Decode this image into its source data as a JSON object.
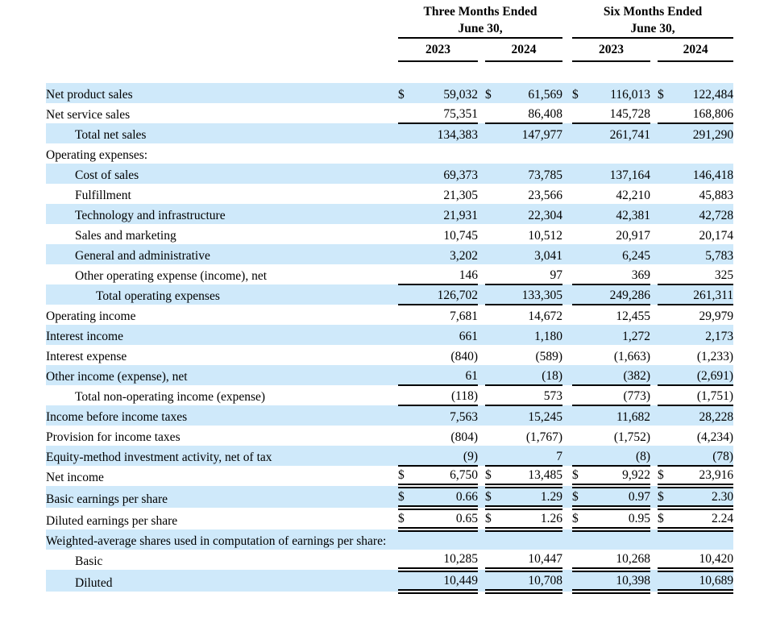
{
  "colors": {
    "row_highlight": "#cfe9fa",
    "text": "#000000",
    "rule": "#000000",
    "background": "#ffffff"
  },
  "table": {
    "currency_symbol": "$",
    "periods": [
      {
        "line1": "Three Months Ended",
        "line2": "June 30,",
        "years": [
          "2023",
          "2024"
        ]
      },
      {
        "line1": "Six Months Ended",
        "line2": "June 30,",
        "years": [
          "2023",
          "2024"
        ]
      }
    ],
    "rows": [
      {
        "label": "Net product sales",
        "indent": 0,
        "hl": true,
        "dollar": true,
        "border": "none",
        "values": [
          "59,032",
          "61,569",
          "116,013",
          "122,484"
        ]
      },
      {
        "label": "Net service sales",
        "indent": 0,
        "hl": false,
        "dollar": false,
        "border": "single",
        "values": [
          "75,351",
          "86,408",
          "145,728",
          "168,806"
        ]
      },
      {
        "label": "Total net sales",
        "indent": 1,
        "hl": true,
        "dollar": false,
        "border": "none",
        "values": [
          "134,383",
          "147,977",
          "261,741",
          "291,290"
        ]
      },
      {
        "label": "Operating expenses:",
        "indent": 0,
        "hl": false,
        "dollar": false,
        "border": "none",
        "values": null
      },
      {
        "label": "Cost of sales",
        "indent": 1,
        "hl": true,
        "dollar": false,
        "border": "none",
        "values": [
          "69,373",
          "73,785",
          "137,164",
          "146,418"
        ]
      },
      {
        "label": "Fulfillment",
        "indent": 1,
        "hl": false,
        "dollar": false,
        "border": "none",
        "values": [
          "21,305",
          "23,566",
          "42,210",
          "45,883"
        ]
      },
      {
        "label": "Technology and infrastructure",
        "indent": 1,
        "hl": true,
        "dollar": false,
        "border": "none",
        "values": [
          "21,931",
          "22,304",
          "42,381",
          "42,728"
        ]
      },
      {
        "label": "Sales and marketing",
        "indent": 1,
        "hl": false,
        "dollar": false,
        "border": "none",
        "values": [
          "10,745",
          "10,512",
          "20,917",
          "20,174"
        ]
      },
      {
        "label": "General and administrative",
        "indent": 1,
        "hl": true,
        "dollar": false,
        "border": "none",
        "values": [
          "3,202",
          "3,041",
          "6,245",
          "5,783"
        ]
      },
      {
        "label": "Other operating expense (income), net",
        "indent": 1,
        "hl": false,
        "dollar": false,
        "border": "single",
        "values": [
          "146",
          "97",
          "369",
          "325"
        ]
      },
      {
        "label": "Total operating expenses",
        "indent": 2,
        "hl": true,
        "dollar": false,
        "border": "single",
        "values": [
          "126,702",
          "133,305",
          "249,286",
          "261,311"
        ]
      },
      {
        "label": "Operating income",
        "indent": 0,
        "hl": false,
        "dollar": false,
        "border": "none",
        "values": [
          "7,681",
          "14,672",
          "12,455",
          "29,979"
        ]
      },
      {
        "label": "Interest income",
        "indent": 0,
        "hl": true,
        "dollar": false,
        "border": "none",
        "values": [
          "661",
          "1,180",
          "1,272",
          "2,173"
        ]
      },
      {
        "label": "Interest expense",
        "indent": 0,
        "hl": false,
        "dollar": false,
        "border": "none",
        "values": [
          "(840)",
          "(589)",
          "(1,663)",
          "(1,233)"
        ]
      },
      {
        "label": "Other income (expense), net",
        "indent": 0,
        "hl": true,
        "dollar": false,
        "border": "single",
        "values": [
          "61",
          "(18)",
          "(382)",
          "(2,691)"
        ]
      },
      {
        "label": "Total non-operating income (expense)",
        "indent": 1,
        "hl": false,
        "dollar": false,
        "border": "single",
        "values": [
          "(118)",
          "573",
          "(773)",
          "(1,751)"
        ]
      },
      {
        "label": "Income before income taxes",
        "indent": 0,
        "hl": true,
        "dollar": false,
        "border": "none",
        "values": [
          "7,563",
          "15,245",
          "11,682",
          "28,228"
        ]
      },
      {
        "label": "Provision for income taxes",
        "indent": 0,
        "hl": false,
        "dollar": false,
        "border": "none",
        "values": [
          "(804)",
          "(1,767)",
          "(1,752)",
          "(4,234)"
        ]
      },
      {
        "label": "Equity-method investment activity, net of tax",
        "indent": 0,
        "hl": true,
        "dollar": false,
        "border": "single",
        "values": [
          "(9)",
          "7",
          "(8)",
          "(78)"
        ]
      },
      {
        "label": "Net income",
        "indent": 0,
        "hl": false,
        "dollar": true,
        "border": "double",
        "values": [
          "6,750",
          "13,485",
          "9,922",
          "23,916"
        ]
      },
      {
        "label": "Basic earnings per share",
        "indent": 0,
        "hl": true,
        "dollar": true,
        "border": "double",
        "values": [
          "0.66",
          "1.29",
          "0.97",
          "2.30"
        ]
      },
      {
        "label": "Diluted earnings per share",
        "indent": 0,
        "hl": false,
        "dollar": true,
        "border": "double",
        "values": [
          "0.65",
          "1.26",
          "0.95",
          "2.24"
        ]
      },
      {
        "label": "Weighted-average shares used in computation of earnings per share:",
        "indent": 0,
        "hl": true,
        "dollar": false,
        "border": "none",
        "values": null
      },
      {
        "label": "Basic",
        "indent": 1,
        "hl": false,
        "dollar": false,
        "border": "double",
        "values": [
          "10,285",
          "10,447",
          "10,268",
          "10,420"
        ]
      },
      {
        "label": "Diluted",
        "indent": 1,
        "hl": true,
        "dollar": false,
        "border": "double",
        "values": [
          "10,449",
          "10,708",
          "10,398",
          "10,689"
        ]
      }
    ]
  }
}
